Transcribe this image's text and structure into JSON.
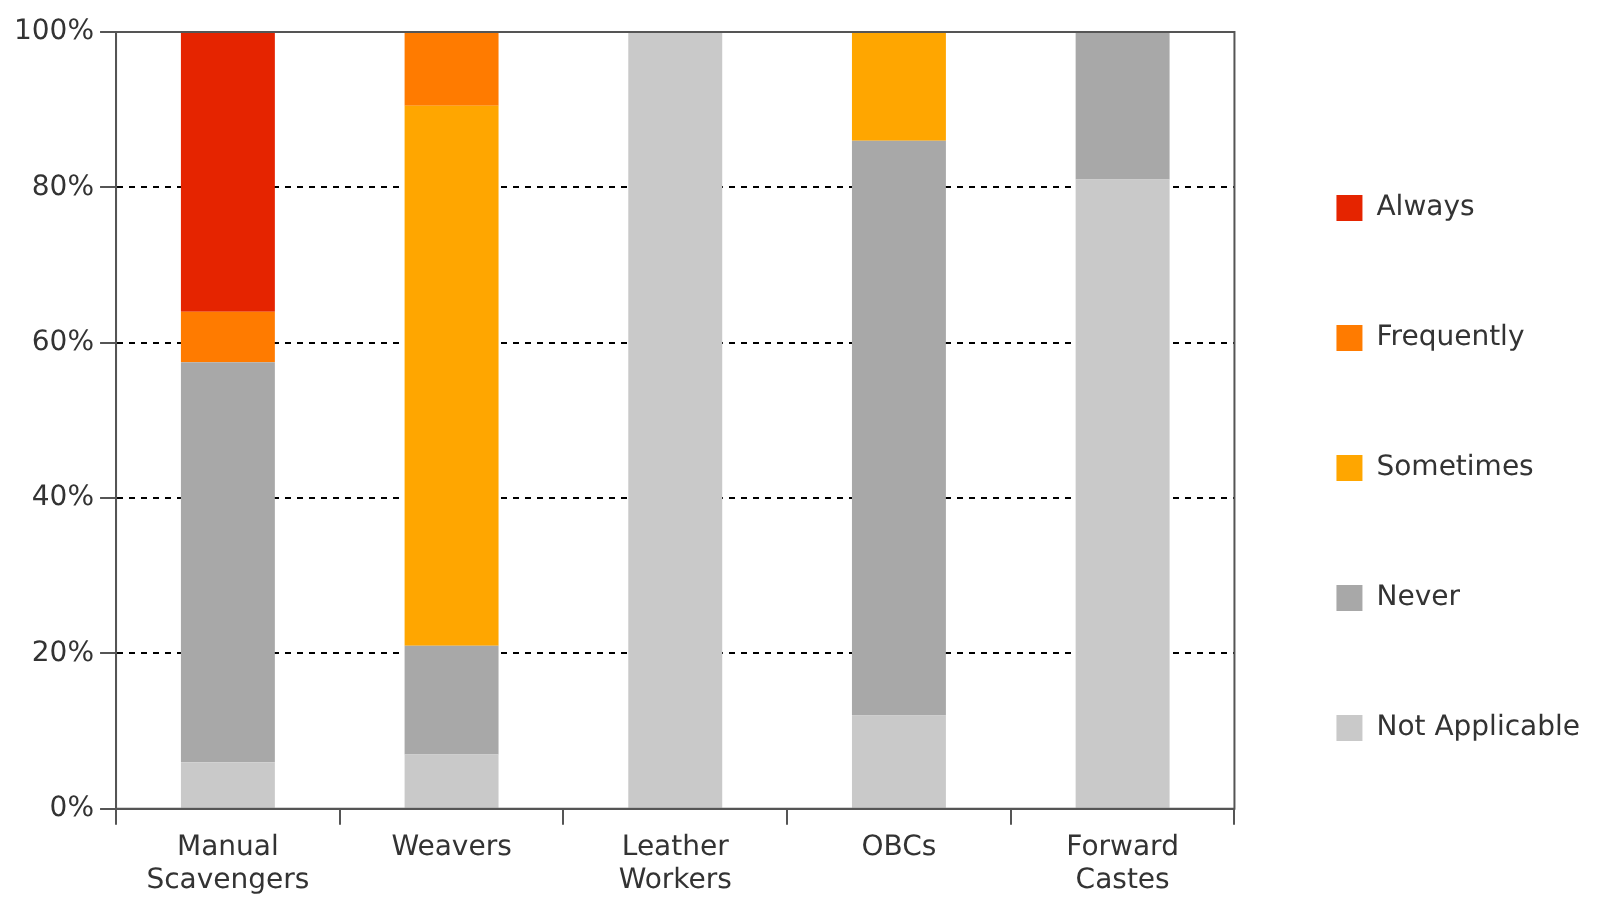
{
  "chart_data": {
    "type": "bar",
    "stacked": true,
    "categories": [
      "Manual Scavengers",
      "Weavers",
      "Leather Workers",
      "OBCs",
      "Forward Castes"
    ],
    "series": [
      {
        "name": "Not Applicable",
        "color": "#c9c9c9",
        "values": [
          6,
          7,
          100,
          12,
          81
        ]
      },
      {
        "name": "Never",
        "color": "#a8a8a8",
        "values": [
          51.5,
          14,
          0,
          74,
          19
        ]
      },
      {
        "name": "Sometimes",
        "color": "#ffa600",
        "values": [
          0,
          69.5,
          0,
          14,
          0
        ]
      },
      {
        "name": "Frequently",
        "color": "#ff7b00",
        "values": [
          6.5,
          9.5,
          0,
          0,
          0
        ]
      },
      {
        "name": "Always",
        "color": "#e52400",
        "values": [
          36,
          0,
          0,
          0,
          0
        ]
      }
    ],
    "ylim": [
      0,
      100
    ],
    "yticks": [
      {
        "value": 0,
        "label": "0%"
      },
      {
        "value": 20,
        "label": "20%"
      },
      {
        "value": 40,
        "label": "40%"
      },
      {
        "value": 60,
        "label": "60%"
      },
      {
        "value": 80,
        "label": "80%"
      },
      {
        "value": 100,
        "label": "100%"
      }
    ],
    "grid": "y",
    "legend": "right"
  }
}
